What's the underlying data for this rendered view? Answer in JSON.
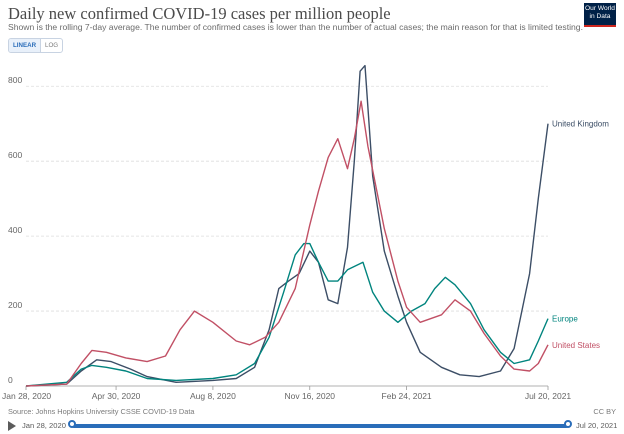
{
  "header": {
    "title": "Daily new confirmed COVID-19 cases per million people",
    "subtitle": "Shown is the rolling 7-day average. The number of confirmed cases is lower than the number of actual cases; the main reason for that is limited testing.",
    "logo_line1": "Our World",
    "logo_line2": "in Data"
  },
  "scale_toggle": {
    "linear_label": "LINEAR",
    "log_label": "LOG",
    "selected": "LINEAR"
  },
  "footer": {
    "source": "Source: Johns Hopkins University CSSE COVID-19 Data",
    "license": "CC BY"
  },
  "timeline": {
    "start_label": "Jan 28, 2020",
    "end_label": "Jul 20, 2021"
  },
  "colors": {
    "uk": "#3c4e66",
    "europe": "#00847e",
    "us": "#c15065",
    "grid": "#dddddd",
    "accent": "#2a6db9"
  },
  "chart_data": {
    "type": "line",
    "title": "Daily new confirmed COVID-19 cases per million people",
    "xlabel": "",
    "ylabel": "",
    "ylim": [
      0,
      870
    ],
    "xlim": [
      "2020-01-28",
      "2021-07-20"
    ],
    "yticks": [
      0,
      200,
      400,
      600,
      800
    ],
    "xticks": [
      "Jan 28, 2020",
      "Apr 30, 2020",
      "Aug 8, 2020",
      "Nov 16, 2020",
      "Feb 24, 2021",
      "Jul 20, 2021"
    ],
    "xtick_dates": [
      "2020-01-28",
      "2020-04-30",
      "2020-08-08",
      "2020-11-16",
      "2021-02-24",
      "2021-07-20"
    ],
    "grid": "horizontal",
    "legend": "inline labels at line ends",
    "series": [
      {
        "name": "United Kingdom",
        "color": "#3c4e66",
        "x": [
          "2020-01-28",
          "2020-03-10",
          "2020-03-25",
          "2020-04-10",
          "2020-04-25",
          "2020-05-15",
          "2020-06-01",
          "2020-07-01",
          "2020-08-08",
          "2020-09-01",
          "2020-09-20",
          "2020-10-05",
          "2020-10-15",
          "2020-10-25",
          "2020-11-05",
          "2020-11-16",
          "2020-11-25",
          "2020-12-05",
          "2020-12-15",
          "2020-12-25",
          "2021-01-01",
          "2021-01-07",
          "2021-01-12",
          "2021-01-20",
          "2021-02-01",
          "2021-02-15",
          "2021-02-24",
          "2021-03-10",
          "2021-04-01",
          "2021-04-20",
          "2021-05-10",
          "2021-06-01",
          "2021-06-15",
          "2021-07-01",
          "2021-07-10",
          "2021-07-20"
        ],
        "values": [
          0,
          5,
          40,
          70,
          65,
          45,
          25,
          10,
          15,
          20,
          50,
          150,
          260,
          280,
          300,
          360,
          330,
          230,
          220,
          370,
          600,
          840,
          855,
          560,
          360,
          240,
          170,
          90,
          50,
          30,
          25,
          40,
          100,
          300,
          500,
          700
        ]
      },
      {
        "name": "Europe",
        "color": "#00847e",
        "x": [
          "2020-01-28",
          "2020-03-10",
          "2020-03-25",
          "2020-04-05",
          "2020-04-20",
          "2020-05-10",
          "2020-06-01",
          "2020-07-01",
          "2020-08-08",
          "2020-09-01",
          "2020-09-20",
          "2020-10-05",
          "2020-10-20",
          "2020-11-01",
          "2020-11-10",
          "2020-11-16",
          "2020-11-25",
          "2020-12-05",
          "2020-12-15",
          "2020-12-25",
          "2021-01-10",
          "2021-01-20",
          "2021-02-01",
          "2021-02-15",
          "2021-03-01",
          "2021-03-15",
          "2021-03-25",
          "2021-04-05",
          "2021-04-15",
          "2021-05-01",
          "2021-05-15",
          "2021-06-01",
          "2021-06-15",
          "2021-07-01",
          "2021-07-10",
          "2021-07-20"
        ],
        "values": [
          0,
          10,
          45,
          55,
          50,
          40,
          20,
          15,
          20,
          30,
          60,
          130,
          250,
          350,
          380,
          380,
          330,
          280,
          280,
          310,
          330,
          250,
          200,
          170,
          200,
          220,
          260,
          290,
          270,
          220,
          150,
          90,
          60,
          70,
          120,
          180
        ]
      },
      {
        "name": "United States",
        "color": "#c15065",
        "x": [
          "2020-01-28",
          "2020-03-10",
          "2020-03-25",
          "2020-04-05",
          "2020-04-20",
          "2020-05-10",
          "2020-06-01",
          "2020-06-20",
          "2020-07-05",
          "2020-07-20",
          "2020-08-08",
          "2020-09-01",
          "2020-09-15",
          "2020-10-01",
          "2020-10-15",
          "2020-11-01",
          "2020-11-16",
          "2020-11-25",
          "2020-12-05",
          "2020-12-15",
          "2020-12-25",
          "2021-01-01",
          "2021-01-08",
          "2021-01-15",
          "2021-02-01",
          "2021-02-15",
          "2021-02-24",
          "2021-03-10",
          "2021-04-01",
          "2021-04-15",
          "2021-05-01",
          "2021-05-15",
          "2021-06-01",
          "2021-06-15",
          "2021-07-01",
          "2021-07-10",
          "2021-07-20"
        ],
        "values": [
          0,
          5,
          60,
          95,
          90,
          75,
          65,
          80,
          150,
          200,
          170,
          120,
          110,
          130,
          170,
          260,
          430,
          520,
          610,
          660,
          580,
          660,
          760,
          640,
          420,
          280,
          210,
          170,
          190,
          230,
          200,
          140,
          80,
          45,
          40,
          60,
          110
        ]
      }
    ]
  }
}
